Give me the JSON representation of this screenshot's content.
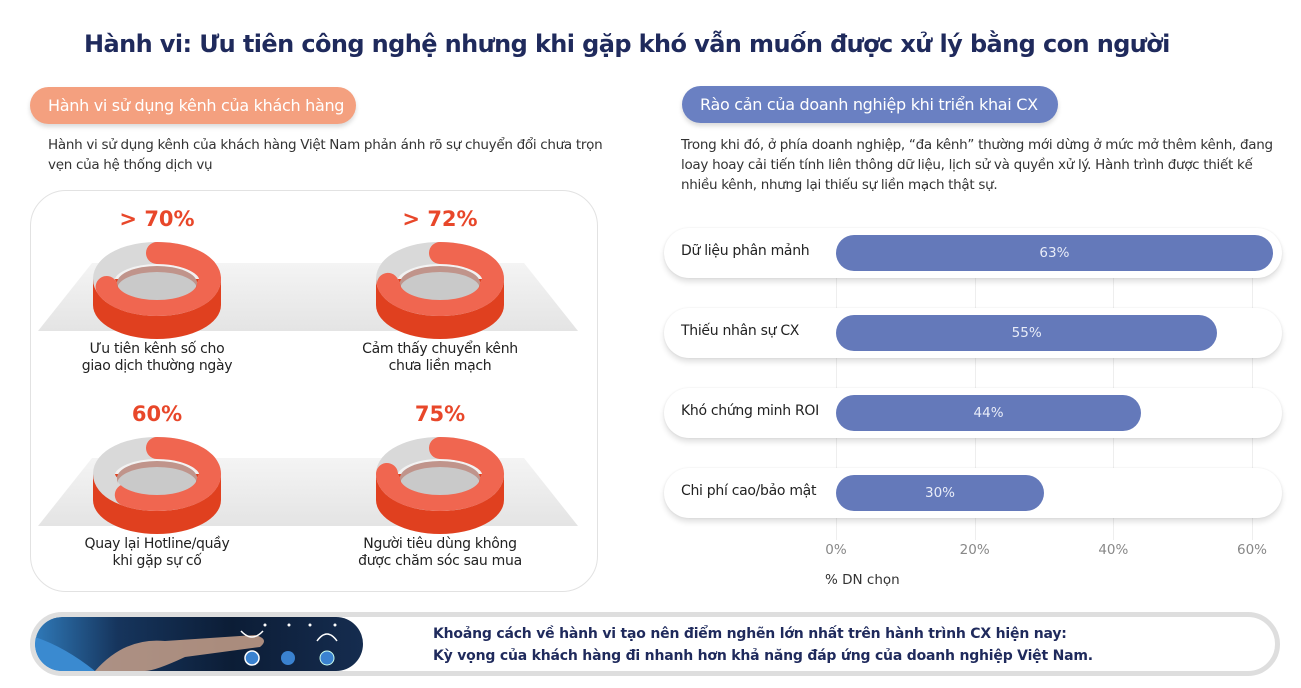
{
  "title": "Hành vi: Ưu tiên công nghệ nhưng khi gặp khó vẫn muốn được xử lý bằng con người",
  "left": {
    "pill": "Hành vi sử dụng kênh của khách hàng",
    "description": "Hành vi sử dụng kênh của khách hàng Việt Nam phản ánh rõ sự chuyển đổi chưa trọn vẹn của hệ thống dịch vụ",
    "donuts": [
      {
        "value": "> 70%",
        "fraction": 70,
        "label1": "Ưu tiên kênh số cho",
        "label2": "giao dịch thường ngày"
      },
      {
        "value": "> 72%",
        "fraction": 72,
        "label1": "Cảm thấy chuyển kênh",
        "label2": "chưa liền mạch"
      },
      {
        "value": "60%",
        "fraction": 60,
        "label1": "Quay lại Hotline/quầy",
        "label2": "khi gặp sự cố"
      },
      {
        "value": "75%",
        "fraction": 75,
        "label1": "Người tiêu dùng không",
        "label2": "được chăm sóc sau mua"
      }
    ],
    "colors": {
      "ring": "#f06650",
      "ring_side": "#e0401f",
      "rest": "#d9d9d9"
    }
  },
  "right": {
    "pill": "Rào cản của doanh nghiệp khi triển khai CX",
    "description": "Trong khi đó, ở phía doanh nghiệp, “đa kênh” thường mới dừng ở mức mở thêm kênh, đang loay hoay cải tiến tính liên thông dữ liệu, lịch sử và quyền xử lý. Hành trình được thiết kế nhiều kênh, nhưng lại thiếu sự liền mạch thật sự."
  },
  "chart_data": {
    "type": "bar",
    "orientation": "horizontal",
    "categories": [
      "Dữ liệu phân mảnh",
      "Thiếu nhân sự CX",
      "Khó chứng minh ROI",
      "Chi phí cao/bảo mật"
    ],
    "values": [
      63,
      55,
      44,
      30
    ],
    "data_labels": [
      "63%",
      "55%",
      "44%",
      "30%"
    ],
    "xlabel": "% DN chọn",
    "xlim": [
      0,
      60
    ],
    "xticks": [
      "0%",
      "20%",
      "40%",
      "60%"
    ],
    "grid": true,
    "bar_color": "#6479ba"
  },
  "banner": {
    "line1": "Khoảng cách về hành vi tạo nên điểm nghẽn lớn nhất trên hành trình CX hiện nay:",
    "line2": "Kỳ vọng của khách hàng đi nhanh hơn khả năng đáp ứng của doanh nghiệp Việt Nam."
  }
}
